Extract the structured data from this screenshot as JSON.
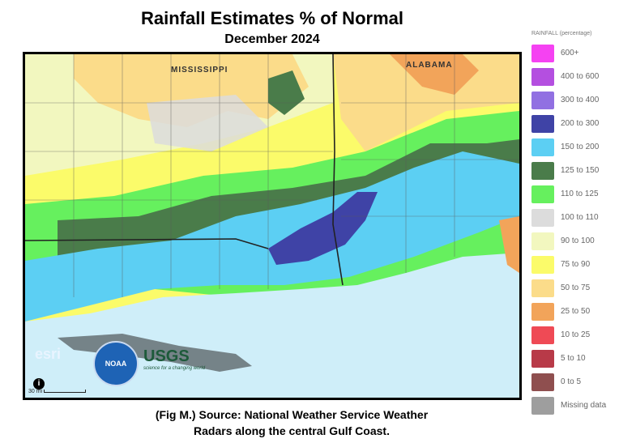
{
  "title": "Rainfall Estimates % of Normal",
  "subtitle": "December 2024",
  "caption_line1": "(Fig M.) Source: National Weather Service Weather",
  "caption_line2": "Radars along the central Gulf Coast.",
  "map": {
    "state_labels": [
      "MISSISSIPPI",
      "ALABAMA"
    ],
    "scale_label": "30 mi",
    "info_icon": "info-icon",
    "logos": [
      "esri",
      "NOAA",
      "USGS"
    ],
    "usgs_tagline": "science for a changing world"
  },
  "legend": {
    "title": "RAINFALL (percentage)",
    "items": [
      {
        "label": "600+",
        "color": "#f542f2"
      },
      {
        "label": "400 to 600",
        "color": "#b44fe0"
      },
      {
        "label": "300 to 400",
        "color": "#9170e2"
      },
      {
        "label": "200 to 300",
        "color": "#3f43a6"
      },
      {
        "label": "150 to 200",
        "color": "#5ccff3"
      },
      {
        "label": "125 to 150",
        "color": "#4a7c4a"
      },
      {
        "label": "110 to 125",
        "color": "#66f05e"
      },
      {
        "label": "100 to 110",
        "color": "#dcdcdc"
      },
      {
        "label": "90 to 100",
        "color": "#f2f7bf"
      },
      {
        "label": "75 to 90",
        "color": "#fbfb6a"
      },
      {
        "label": "50 to 75",
        "color": "#fbdc8a"
      },
      {
        "label": "25 to 50",
        "color": "#f2a45a"
      },
      {
        "label": "10 to 25",
        "color": "#ef4a55"
      },
      {
        "label": "5 to 10",
        "color": "#b83a48"
      },
      {
        "label": "0 to 5",
        "color": "#8f4f4f"
      },
      {
        "label": "Missing data",
        "color": "#9e9e9e"
      }
    ]
  }
}
